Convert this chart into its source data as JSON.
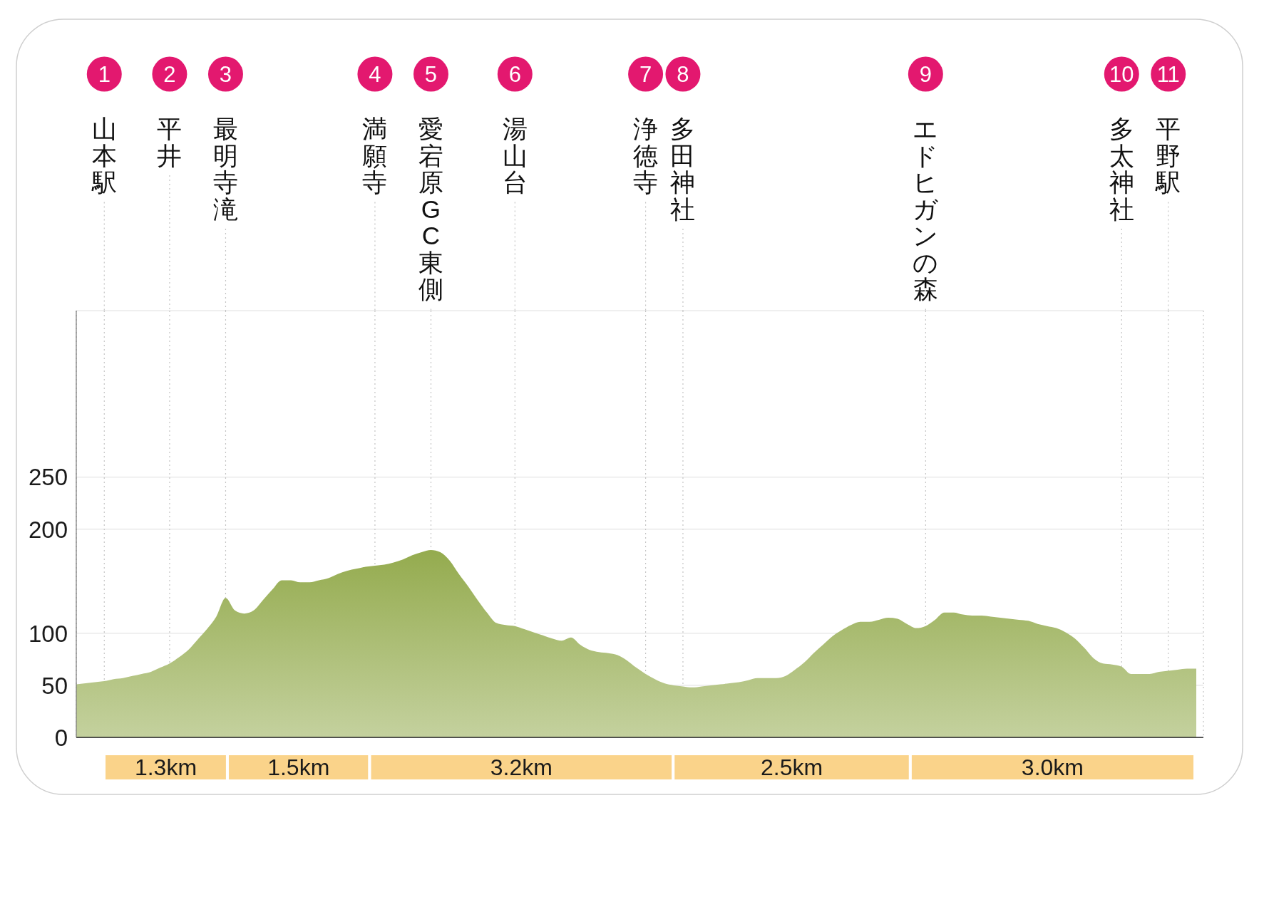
{
  "chart_data": [
    {
      "type": "area",
      "categories": [
        null,
        null,
        null,
        "山本駅",
        null,
        null,
        null,
        null,
        null,
        null,
        "平井",
        null,
        null,
        null,
        null,
        null,
        "最明寺滝",
        null,
        null,
        null,
        null,
        null,
        null,
        null,
        null,
        null,
        null,
        null,
        null,
        null,
        null,
        null,
        "満願寺",
        null,
        null,
        null,
        null,
        null,
        "愛宕原GC東側",
        null,
        null,
        null,
        null,
        null,
        null,
        null,
        null,
        "湯山台",
        null,
        null,
        null,
        null,
        null,
        null,
        null,
        null,
        null,
        null,
        null,
        null,
        null,
        "浄徳寺",
        null,
        null,
        null,
        "多田神社",
        null,
        null,
        null,
        null,
        null,
        null,
        null,
        null,
        null,
        null,
        null,
        null,
        null,
        null,
        null,
        null,
        null,
        null,
        null,
        null,
        null,
        null,
        null,
        null,
        null,
        "エドヒガンの森",
        null,
        null,
        null,
        null,
        null,
        null,
        null,
        null,
        null,
        null,
        null,
        null,
        null,
        null,
        null,
        null,
        null,
        null,
        null,
        null,
        "多太神社",
        null,
        null,
        null,
        null,
        "平野駅",
        null,
        null,
        null
      ],
      "values": [
        51,
        52,
        53,
        54,
        56,
        57,
        59,
        61,
        63,
        67,
        71,
        77,
        84,
        94,
        104,
        116,
        134,
        122,
        119,
        122,
        132,
        142,
        151,
        151,
        149,
        149,
        151,
        153,
        157,
        160,
        162,
        164,
        165,
        166,
        168,
        171,
        175,
        178,
        180,
        178,
        170,
        157,
        145,
        132,
        120,
        110,
        108,
        107,
        104,
        101,
        98,
        95,
        93,
        96,
        89,
        84,
        82,
        81,
        79,
        74,
        67,
        61,
        56,
        52,
        50,
        49,
        48,
        49,
        50,
        51,
        52,
        53,
        55,
        57,
        57,
        57,
        59,
        65,
        72,
        81,
        89,
        97,
        103,
        108,
        111,
        111,
        113,
        115,
        114,
        109,
        105,
        107,
        113,
        120,
        120,
        118,
        117,
        117,
        116,
        115,
        114,
        113,
        112,
        109,
        107,
        105,
        101,
        95,
        86,
        76,
        71,
        70,
        68,
        61,
        61,
        61,
        63,
        64,
        65,
        66,
        66
      ],
      "color": "#94ab4e",
      "ylim": [
        0,
        410
      ],
      "yticks": [
        0,
        50,
        100,
        200,
        250
      ],
      "grid": true,
      "annotations": [
        "1",
        "2",
        "3",
        "4",
        "5",
        "6",
        "7",
        "8",
        "9",
        "10",
        "11"
      ]
    },
    {
      "type": "bar",
      "orientation": "horizontal",
      "stacked": true,
      "categories": [
        null
      ],
      "series": [
        {
          "color": "#fad38a",
          "values": [
            1.3
          ],
          "value_labels": [
            "1.3km"
          ]
        },
        {
          "color": "#fad38a",
          "values": [
            1.5
          ],
          "value_labels": [
            "1.5km"
          ]
        },
        {
          "color": "#fad38a",
          "values": [
            3.2
          ],
          "value_labels": [
            "3.2km"
          ]
        },
        {
          "color": "#fad38a",
          "values": [
            2.5
          ],
          "value_labels": [
            "2.5km"
          ]
        },
        {
          "color": "#fad38a",
          "values": [
            3.0
          ],
          "value_labels": [
            "3.0km"
          ]
        }
      ]
    }
  ]
}
